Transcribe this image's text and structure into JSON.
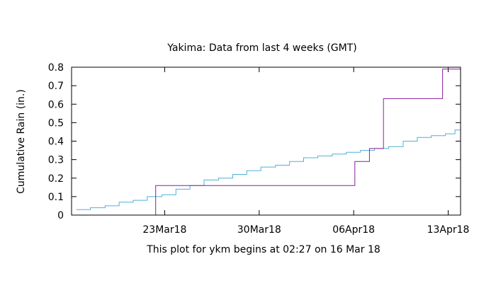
{
  "chart_data": {
    "type": "line",
    "title": "Yakima:  Data from last 4 weeks (GMT)",
    "xlabel": "This plot for ykm begins at 02:27 on 16 Mar 18",
    "ylabel": "Cumulative Rain (in.)",
    "ylim": [
      0,
      0.8
    ],
    "yticks": [
      0,
      0.1,
      0.2,
      0.3,
      0.4,
      0.5,
      0.6,
      0.7,
      0.8
    ],
    "ytick_labels": [
      "0",
      "0.1",
      "0.2",
      "0.3",
      "0.4",
      "0.5",
      "0.6",
      "0.7",
      "0.8"
    ],
    "xlim": [
      "2018-03-16T02:27",
      "2018-04-13T22:00"
    ],
    "xticks": [
      {
        "date": "2018-03-23",
        "label": "23Mar18"
      },
      {
        "date": "2018-03-30",
        "label": "30Mar18"
      },
      {
        "date": "2018-04-06",
        "label": "06Apr18"
      },
      {
        "date": "2018-04-13",
        "label": "13Apr18"
      }
    ],
    "grid": false,
    "legend": "none",
    "series": [
      {
        "color": "#4fb0d6",
        "step": true,
        "points": [
          [
            "2018-03-16T11:00",
            0.03
          ],
          [
            "2018-03-17T12:00",
            0.04
          ],
          [
            "2018-03-18T14:00",
            0.05
          ],
          [
            "2018-03-19T15:00",
            0.07
          ],
          [
            "2018-03-20T16:00",
            0.08
          ],
          [
            "2018-03-21T17:00",
            0.1
          ],
          [
            "2018-03-22T19:00",
            0.11
          ],
          [
            "2018-03-23T20:00",
            0.14
          ],
          [
            "2018-03-24T21:00",
            0.16
          ],
          [
            "2018-03-25T22:00",
            0.19
          ],
          [
            "2018-03-27T00:00",
            0.2
          ],
          [
            "2018-03-28T01:00",
            0.22
          ],
          [
            "2018-03-29T02:00",
            0.24
          ],
          [
            "2018-03-30T03:00",
            0.26
          ],
          [
            "2018-03-31T05:00",
            0.27
          ],
          [
            "2018-04-01T06:00",
            0.29
          ],
          [
            "2018-04-02T07:00",
            0.31
          ],
          [
            "2018-04-03T08:00",
            0.32
          ],
          [
            "2018-04-04T10:00",
            0.33
          ],
          [
            "2018-04-05T11:00",
            0.34
          ],
          [
            "2018-04-06T12:00",
            0.35
          ],
          [
            "2018-04-07T13:00",
            0.36
          ],
          [
            "2018-04-08T14:00",
            0.37
          ],
          [
            "2018-04-09T16:00",
            0.4
          ],
          [
            "2018-04-10T17:00",
            0.42
          ],
          [
            "2018-04-11T18:00",
            0.43
          ],
          [
            "2018-04-12T19:00",
            0.44
          ],
          [
            "2018-04-13T12:00",
            0.46
          ],
          [
            "2018-04-13T22:00",
            0.46
          ]
        ]
      },
      {
        "color": "#8a1e9e",
        "step": true,
        "points": [
          [
            "2018-03-16T02:27",
            0
          ],
          [
            "2018-03-22T08:00",
            0
          ],
          [
            "2018-03-22T08:00",
            0.16
          ],
          [
            "2018-04-06T02:00",
            0.16
          ],
          [
            "2018-04-06T02:00",
            0.29
          ],
          [
            "2018-04-07T04:00",
            0.29
          ],
          [
            "2018-04-07T04:00",
            0.36
          ],
          [
            "2018-04-08T05:00",
            0.36
          ],
          [
            "2018-04-08T05:00",
            0.63
          ],
          [
            "2018-04-12T14:00",
            0.63
          ],
          [
            "2018-04-12T14:00",
            0.79
          ],
          [
            "2018-04-13T22:00",
            0.79
          ]
        ]
      }
    ]
  }
}
